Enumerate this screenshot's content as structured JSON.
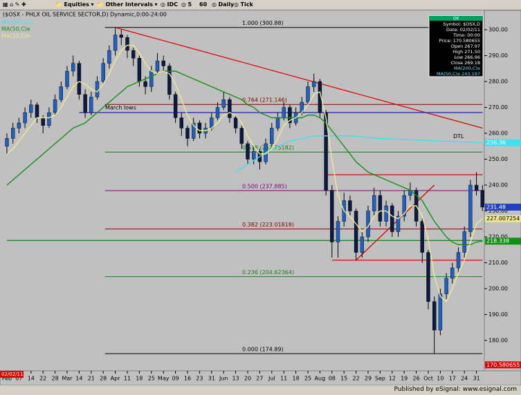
{
  "toolbar": {
    "items": [
      "Equities",
      "Other Intervals",
      "IDC",
      "5",
      "60",
      "Daily",
      "Tick"
    ]
  },
  "footer": "Published by eSignal: www.esignal.com",
  "chart_data": {
    "type": "candlestick",
    "title": "($OSX - PHLX OIL SERVICE SECTOR,D) Dynamic,0:00-24:00",
    "categories": [
      "Feb",
      null,
      "07",
      null,
      "14",
      null,
      "22",
      null,
      "28",
      null,
      "Mar",
      null,
      "14",
      null,
      "21",
      null,
      "28",
      null,
      "Apr",
      null,
      "11",
      null,
      "18",
      null,
      "25",
      null,
      "May",
      null,
      "09",
      null,
      "16",
      null,
      "23",
      null,
      "31",
      null,
      "Jun",
      null,
      "13",
      null,
      "20",
      null,
      "27",
      null,
      "Jul",
      null,
      "11",
      null,
      "18",
      null,
      "25",
      null,
      "Aug",
      null,
      "08",
      null,
      "15",
      null,
      "22",
      null,
      "29",
      null,
      "Sep",
      null,
      "12",
      null,
      "19",
      null,
      "26",
      null,
      "Oct",
      null,
      "10",
      null,
      "17",
      null,
      "24",
      null,
      "31",
      null
    ],
    "candles": [
      [
        255,
        260,
        252,
        258
      ],
      [
        258,
        264,
        256,
        262
      ],
      [
        262,
        266,
        260,
        264
      ],
      [
        264,
        270,
        262,
        268
      ],
      [
        268,
        273,
        266,
        271
      ],
      [
        271,
        272,
        264,
        266
      ],
      [
        266,
        267,
        260,
        263
      ],
      [
        263,
        270,
        262,
        268
      ],
      [
        268,
        275,
        267,
        273
      ],
      [
        273,
        280,
        272,
        278
      ],
      [
        278,
        286,
        277,
        284
      ],
      [
        284,
        290,
        282,
        287
      ],
      [
        287,
        288,
        273,
        275
      ],
      [
        275,
        277,
        266,
        268
      ],
      [
        268,
        276,
        267,
        274
      ],
      [
        274,
        282,
        273,
        280
      ],
      [
        280,
        289,
        279,
        287
      ],
      [
        287,
        294,
        285,
        292
      ],
      [
        292,
        301,
        290,
        298
      ],
      [
        298,
        300,
        294,
        297
      ],
      [
        297,
        298,
        289,
        292
      ],
      [
        292,
        293,
        286,
        289
      ],
      [
        289,
        290,
        278,
        280
      ],
      [
        280,
        282,
        275,
        278
      ],
      [
        278,
        286,
        276,
        284
      ],
      [
        284,
        291,
        283,
        288
      ],
      [
        288,
        290,
        284,
        286
      ],
      [
        286,
        287,
        273,
        275
      ],
      [
        275,
        276,
        264,
        266
      ],
      [
        266,
        268,
        259,
        262
      ],
      [
        262,
        263,
        255,
        258
      ],
      [
        258,
        266,
        257,
        264
      ],
      [
        264,
        265,
        258,
        260
      ],
      [
        260,
        264,
        258,
        262
      ],
      [
        262,
        268,
        261,
        266
      ],
      [
        266,
        272,
        265,
        270
      ],
      [
        270,
        276,
        269,
        273
      ],
      [
        273,
        274,
        264,
        266
      ],
      [
        266,
        267,
        260,
        262
      ],
      [
        262,
        263,
        254,
        256
      ],
      [
        256,
        257,
        248,
        250
      ],
      [
        250,
        255,
        248,
        253
      ],
      [
        253,
        254,
        246,
        249
      ],
      [
        249,
        258,
        248,
        256
      ],
      [
        256,
        264,
        255,
        262
      ],
      [
        262,
        268,
        261,
        266
      ],
      [
        266,
        272,
        265,
        270
      ],
      [
        270,
        271,
        262,
        264
      ],
      [
        264,
        270,
        263,
        268
      ],
      [
        268,
        274,
        267,
        272
      ],
      [
        272,
        280,
        271,
        278
      ],
      [
        278,
        283,
        276,
        280
      ],
      [
        280,
        281,
        266,
        268
      ],
      [
        268,
        269,
        236,
        238
      ],
      [
        238,
        240,
        212,
        218
      ],
      [
        218,
        228,
        212,
        226
      ],
      [
        226,
        237,
        224,
        234
      ],
      [
        234,
        236,
        228,
        230
      ],
      [
        230,
        231,
        211,
        214
      ],
      [
        214,
        222,
        212,
        220
      ],
      [
        220,
        232,
        218,
        230
      ],
      [
        230,
        239,
        228,
        236
      ],
      [
        236,
        238,
        224,
        226
      ],
      [
        226,
        234,
        224,
        232
      ],
      [
        232,
        233,
        220,
        222
      ],
      [
        222,
        230,
        220,
        228
      ],
      [
        228,
        238,
        226,
        236
      ],
      [
        236,
        241,
        234,
        238
      ],
      [
        238,
        239,
        224,
        226
      ],
      [
        226,
        227,
        210,
        214
      ],
      [
        214,
        215,
        192,
        195
      ],
      [
        195,
        197,
        175,
        184
      ],
      [
        184,
        200,
        182,
        198
      ],
      [
        198,
        206,
        196,
        204
      ],
      [
        204,
        210,
        202,
        208
      ],
      [
        208,
        216,
        206,
        214
      ],
      [
        214,
        224,
        212,
        222
      ],
      [
        222,
        242,
        220,
        240
      ],
      [
        240,
        245,
        236,
        238
      ],
      [
        238,
        240,
        230,
        231.48
      ]
    ],
    "up_color": "#1f5fbf",
    "down_color": "#0a1a40",
    "series": [
      {
        "name": "MA(200,C)e",
        "color": "#40e0f0",
        "values": [
          null,
          null,
          null,
          null,
          null,
          null,
          null,
          null,
          null,
          null,
          null,
          null,
          null,
          null,
          null,
          null,
          null,
          null,
          null,
          null,
          null,
          null,
          null,
          null,
          null,
          null,
          null,
          null,
          null,
          null,
          null,
          null,
          null,
          null,
          null,
          null,
          null,
          null,
          245,
          246.5,
          248,
          249.5,
          251,
          252.5,
          254,
          255,
          256,
          257,
          257.5,
          258,
          258.5,
          259,
          259,
          259,
          259,
          259,
          259,
          259,
          258.8,
          258.6,
          258.4,
          258.2,
          258,
          257.9,
          257.8,
          257.7,
          257.6,
          257.5,
          257.4,
          257.3,
          257.2,
          257.1,
          257,
          256.9,
          256.8,
          256.7,
          256.6,
          256.5,
          256.4,
          256.36
        ]
      },
      {
        "name": "MA(50,C)e",
        "color": "#109010",
        "values": [
          240,
          242,
          244,
          246,
          248,
          250,
          252,
          254,
          256,
          258,
          260,
          262,
          263,
          264,
          266,
          268,
          270,
          272,
          274,
          276,
          278,
          279,
          280,
          281,
          282,
          283,
          284,
          284,
          284,
          283,
          282,
          281,
          280,
          279,
          278,
          277,
          276,
          275,
          274,
          273,
          271,
          270,
          268,
          267,
          266,
          266,
          266,
          266,
          266,
          266,
          267,
          267,
          266,
          264,
          261,
          258,
          255,
          252,
          249,
          247,
          245,
          244,
          243,
          242,
          241,
          240,
          239,
          238,
          236,
          234,
          230,
          226,
          223,
          220,
          218,
          217,
          217,
          217,
          218,
          218.338
        ]
      },
      {
        "name": "MA(10,C)e",
        "color": "#f0e890",
        "values": [
          252,
          254,
          257,
          260,
          263,
          266,
          266,
          266,
          267,
          270,
          274,
          278,
          280,
          279,
          277,
          276,
          279,
          283,
          288,
          292,
          294,
          294,
          291,
          287,
          284,
          283,
          284,
          283,
          279,
          273,
          267,
          263,
          261,
          261,
          262,
          264,
          267,
          268,
          267,
          264,
          259,
          255,
          252,
          252,
          254,
          258,
          263,
          265,
          266,
          268,
          271,
          275,
          276,
          266,
          250,
          236,
          230,
          228,
          225,
          222,
          224,
          228,
          230,
          230,
          228,
          227,
          229,
          232,
          232,
          228,
          219,
          205,
          197,
          195,
          200,
          206,
          211,
          218,
          225,
          227.007254
        ]
      }
    ],
    "ylim": [
      168.8,
      306.67
    ],
    "yticks": [
      {
        "value": 300,
        "label": "300.00"
      },
      {
        "value": 290,
        "label": "290.00"
      },
      {
        "value": 280,
        "label": "280.00"
      },
      {
        "value": 270,
        "label": "270.00"
      },
      {
        "value": 260,
        "label": "260.00"
      },
      {
        "value": 250,
        "label": "250.00"
      },
      {
        "value": 240,
        "label": "240.00"
      },
      {
        "value": 230,
        "label": "230.00"
      },
      {
        "value": 220,
        "label": "220.00"
      },
      {
        "value": 210,
        "label": "210.00"
      },
      {
        "value": 200,
        "label": "200.00"
      },
      {
        "value": 190,
        "label": "190.00"
      },
      {
        "value": 180,
        "label": "180.00"
      }
    ],
    "fib_levels": [
      {
        "value": 300.88,
        "label": "1.000 (300.88)",
        "color": "#000000"
      },
      {
        "value": 271.146,
        "label": "0.764 (271.146)",
        "color": "#800000"
      },
      {
        "value": 252.75182,
        "label": "0.618 (252.75182)",
        "color": "#108010"
      },
      {
        "value": 237.885,
        "label": "0.500 (237.885)",
        "color": "#800080"
      },
      {
        "value": 223.01818,
        "label": "0.382 (223.01818)",
        "color": "#800000"
      },
      {
        "value": 204.62364,
        "label": "0.236 (204.62364)",
        "color": "#108010"
      },
      {
        "value": 174.89,
        "label": "0.000 (174.89)",
        "color": "#000000"
      }
    ],
    "lines": [
      {
        "from": 18,
        "to": 79,
        "start": 300.88,
        "end": 262,
        "color": "#e00000"
      },
      {
        "from": 12,
        "to": 79,
        "start": 268,
        "end": 268,
        "color": "#2020c0"
      },
      {
        "from": 53,
        "to": 79,
        "start": 244,
        "end": 244,
        "color": "#e00000"
      },
      {
        "from": 54,
        "to": 79,
        "start": 211,
        "end": 211,
        "color": "#e00000"
      },
      {
        "from": 58,
        "to": 71,
        "start": 211,
        "end": 240,
        "color": "#e00000"
      },
      {
        "from": 0,
        "to": 79,
        "start": 218.6,
        "end": 218.6,
        "color": "#108010"
      }
    ],
    "annotations": [
      "March lows",
      "DTL"
    ],
    "price_markers": [
      {
        "value": 256.36,
        "bg": "#40e0f0",
        "color": "#ffffff"
      },
      {
        "value": 231.48,
        "bg": "#2040c0",
        "color": "#ffffff"
      },
      {
        "value": 227.007254,
        "bg": "#f0e890",
        "color": "#000000"
      },
      {
        "value": 218.338,
        "bg": "#109010",
        "color": "#ffffff"
      },
      {
        "value": 170.580655,
        "bg": "#e00000",
        "color": "#ffffff"
      }
    ],
    "date_box": "02/02/11",
    "data_window": {
      "title": "OK",
      "lines": [
        "Symbol: $OSX,D",
        "Date: 02/02/11",
        "Time: 00:00",
        "Price: 170.580655",
        "Open 267.97",
        "High 271.50",
        "Low 266.96",
        "Close 269.18",
        "MA(200,C)e",
        "MA(50,C)e 243.197"
      ]
    }
  }
}
